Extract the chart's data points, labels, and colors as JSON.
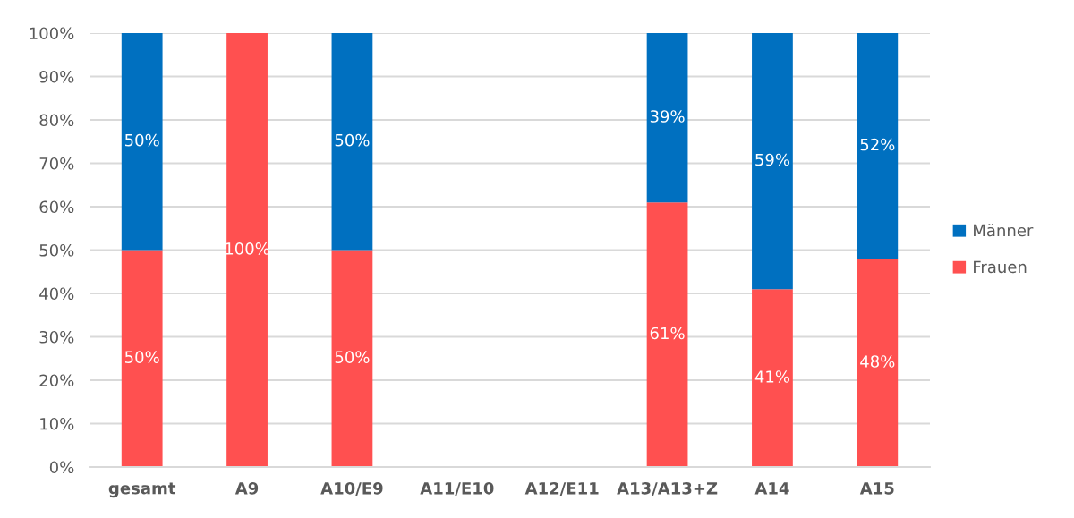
{
  "chart_data": {
    "type": "bar",
    "stacked": true,
    "categories": [
      "gesamt",
      "A9",
      "A10/E9",
      "A11/E10",
      "A12/E11",
      "A13/A13+Z",
      "A14",
      "A15"
    ],
    "series": [
      {
        "name": "Frauen",
        "color": "#ff5050",
        "values": [
          50,
          100,
          50,
          0,
          0,
          61,
          41,
          48
        ],
        "value_labels": [
          "50%",
          "100%",
          "50%",
          null,
          null,
          "61%",
          "41%",
          "48%"
        ]
      },
      {
        "name": "Männer",
        "color": "#0070c0",
        "values": [
          50,
          0,
          50,
          0,
          0,
          39,
          59,
          52
        ],
        "value_labels": [
          "50%",
          null,
          "50%",
          null,
          null,
          "39%",
          "59%",
          "52%"
        ]
      }
    ],
    "ylim": [
      0,
      100
    ],
    "yticks": [
      {
        "value": 0,
        "label": "0%"
      },
      {
        "value": 10,
        "label": "10%"
      },
      {
        "value": 20,
        "label": "20%"
      },
      {
        "value": 30,
        "label": "30%"
      },
      {
        "value": 40,
        "label": "40%"
      },
      {
        "value": 50,
        "label": "50%"
      },
      {
        "value": 60,
        "label": "60%"
      },
      {
        "value": 70,
        "label": "70%"
      },
      {
        "value": 80,
        "label": "80%"
      },
      {
        "value": 90,
        "label": "90%"
      },
      {
        "value": 100,
        "label": "100%"
      }
    ],
    "grid": "y",
    "legend": "right"
  }
}
